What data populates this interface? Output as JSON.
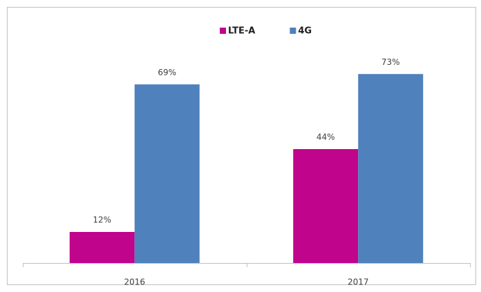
{
  "chart_data": {
    "type": "bar",
    "categories": [
      "2016",
      "2017"
    ],
    "series": [
      {
        "name": "LTE-A",
        "color": "#c0048c",
        "values": [
          12,
          44
        ],
        "value_labels": [
          "12%",
          "44%"
        ]
      },
      {
        "name": "4G",
        "color": "#4f81bd",
        "values": [
          69,
          73
        ],
        "value_labels": [
          "69%",
          "73%"
        ]
      }
    ],
    "ylim": [
      0,
      80
    ],
    "legend": "top"
  }
}
